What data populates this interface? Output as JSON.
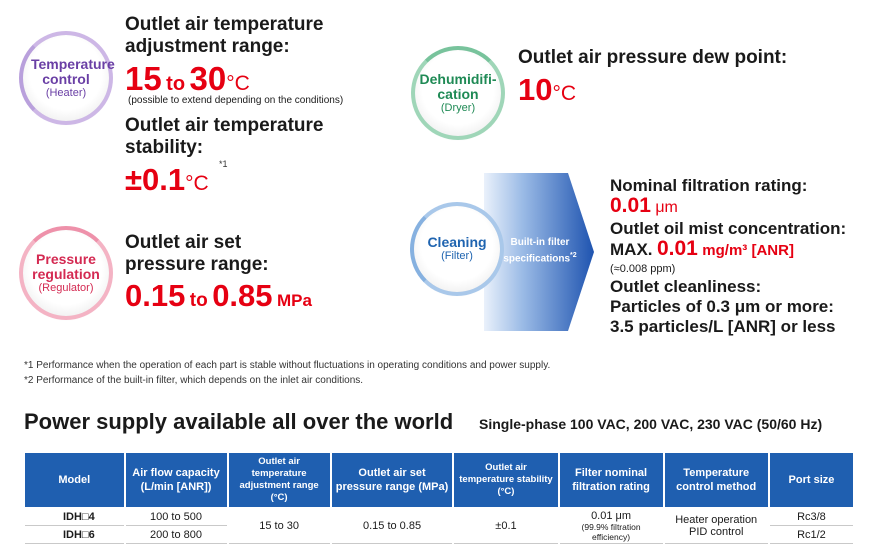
{
  "temperature": {
    "circle_title": "Temperature control",
    "circle_sub": "(Heater)",
    "range_heading_1": "Outlet air temperature",
    "range_heading_2": "adjustment range:",
    "range_from": "15",
    "range_to_word": "to",
    "range_to": "30",
    "range_unit": "°C",
    "range_note": "(possible to extend depending on the conditions)",
    "stability_heading_1": "Outlet air temperature",
    "stability_heading_2": "stability:",
    "stability_value": "±0.1",
    "stability_unit": "°C",
    "stability_footnote_mark": "*1"
  },
  "dehumidification": {
    "circle_title_1": "Dehumidifi-",
    "circle_title_2": "cation",
    "circle_sub": "(Dryer)",
    "heading": "Outlet air pressure dew point:",
    "value": "10",
    "unit": "°C"
  },
  "pressure": {
    "circle_title_1": "Pressure",
    "circle_title_2": "regulation",
    "circle_sub": "(Regulator)",
    "heading_1": "Outlet air set",
    "heading_2": "pressure range:",
    "from": "0.15",
    "to_word": "to",
    "to": "0.85",
    "unit": "MPa"
  },
  "cleaning": {
    "circle_title": "Cleaning",
    "circle_sub": "(Filter)",
    "arrow_line_1": "Built-in filter",
    "arrow_line_2": "specifications",
    "arrow_footnote_mark": "*2",
    "nominal_heading": "Nominal filtration rating:",
    "nominal_value": "0.01",
    "nominal_unit": "μm",
    "oil_heading": "Outlet oil mist concentration:",
    "oil_prefix": "MAX.",
    "oil_value": "0.01",
    "oil_unit": "mg/m³ [ANR]",
    "oil_note": "(≈0.008 ppm)",
    "clean_heading": "Outlet cleanliness:",
    "clean_line_1": "Particles of 0.3 μm or more:",
    "clean_line_2": "3.5 particles/L [ANR] or less"
  },
  "footnotes": [
    {
      "mark": "*1",
      "text": "Performance when the operation of each part is stable without fluctuations in operating conditions and power supply."
    },
    {
      "mark": "*2",
      "text": "Performance of the built-in filter, which depends on the inlet air conditions."
    }
  ],
  "power": {
    "title": "Power supply available all over the world",
    "subtitle": "Single-phase 100 VAC, 200 VAC, 230 VAC (50/60 Hz)"
  },
  "table": {
    "headers": [
      "Model",
      "Air flow capacity (L/min [ANR])",
      "Outlet air temperature adjustment range (°C)",
      "Outlet air set pressure range (MPa)",
      "Outlet air temperature stability (°C)",
      "Filter nominal filtration rating",
      "Temperature control method",
      "Port size"
    ],
    "rows": [
      {
        "model": "IDH□4",
        "flow": "100 to 500",
        "port": "Rc3/8"
      },
      {
        "model": "IDH□6",
        "flow": "200 to 800",
        "port": "Rc1/2"
      }
    ],
    "shared": {
      "temp_range": "15 to 30",
      "pressure_range": "0.15 to 0.85",
      "stability": "±0.1",
      "filter_rating": "0.01 μm",
      "filter_note": "(99.9% filtration efficiency)",
      "control_1": "Heater operation",
      "control_2": "PID control"
    }
  },
  "colors": {
    "accent_red": "#e60012",
    "header_blue": "#1f5fb0"
  }
}
